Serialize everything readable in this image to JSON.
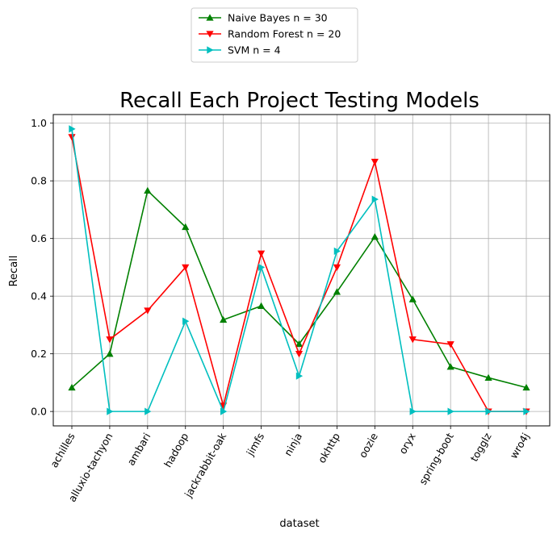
{
  "chart_data": {
    "type": "line",
    "title": "Recall Each Project Testing Models",
    "xlabel": "dataset",
    "ylabel": "Recall",
    "categories": [
      "achilles",
      "alluxio-tachyon",
      "ambari",
      "hadoop",
      "jackrabbit-oak",
      "jimfs",
      "ninja",
      "okhttp",
      "oozie",
      "oryx",
      "spring-boot",
      "togglz",
      "wro4j"
    ],
    "ylim": [
      -0.05,
      1.03
    ],
    "yticks": [
      "0.0",
      "0.2",
      "0.4",
      "0.6",
      "0.8",
      "1.0"
    ],
    "grid": true,
    "legend_position": "top-center, above plot",
    "series": [
      {
        "name": "Naive Bayes n = 30",
        "color": "#008000",
        "marker": "triangle-up",
        "values": [
          0.083,
          0.2,
          0.766,
          0.64,
          0.318,
          0.366,
          0.234,
          0.415,
          0.606,
          0.389,
          0.155,
          0.117,
          0.083
        ]
      },
      {
        "name": "Random Forest n = 20",
        "color": "#ff0000",
        "marker": "triangle-down",
        "values": [
          0.952,
          0.25,
          0.35,
          0.5,
          0.02,
          0.548,
          0.2,
          0.5,
          0.866,
          0.25,
          0.233,
          0.0,
          0.0
        ]
      },
      {
        "name": "SVM n = 4",
        "color": "#00bfbf",
        "marker": "triangle-right",
        "values": [
          0.98,
          0.0,
          0.0,
          0.313,
          0.0,
          0.5,
          0.123,
          0.556,
          0.736,
          0.0,
          0.0,
          0.0,
          0.0
        ]
      }
    ]
  }
}
